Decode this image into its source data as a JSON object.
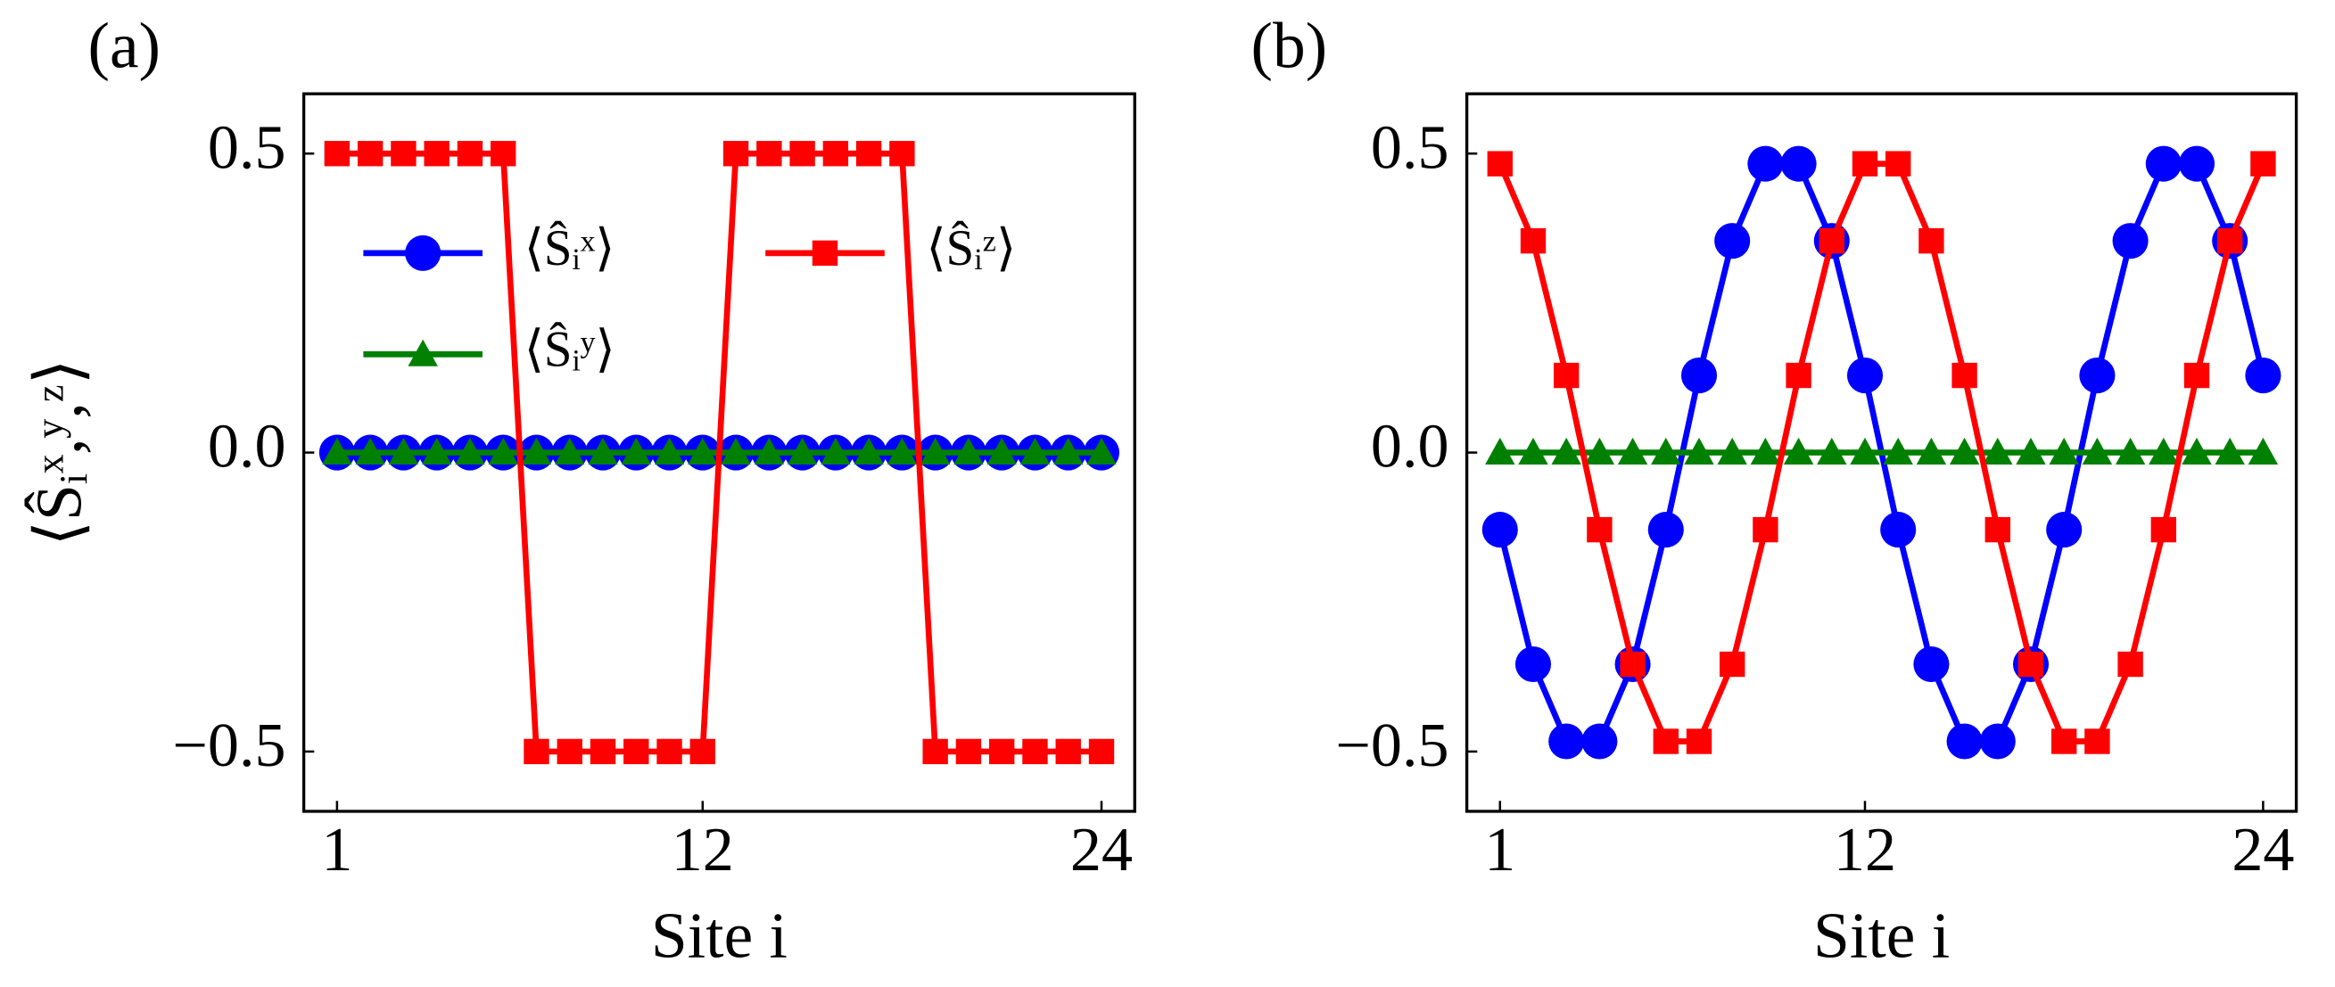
{
  "chart_data": [
    {
      "type": "line",
      "label": "(a)",
      "xlabel": "Site i",
      "ylabel": "⟨Ŝᵢˣ,ʸ,ᶻ⟩",
      "x": [
        1,
        2,
        3,
        4,
        5,
        6,
        7,
        8,
        9,
        10,
        11,
        12,
        13,
        14,
        15,
        16,
        17,
        18,
        19,
        20,
        21,
        22,
        23,
        24
      ],
      "xlim": [
        0,
        25
      ],
      "xticks": [
        1,
        12,
        24
      ],
      "ylim": [
        -0.6,
        0.6
      ],
      "yticks": [
        {
          "value": -0.5,
          "label": "−0.5"
        },
        {
          "value": 0,
          "label": "0.0"
        },
        0.5
      ],
      "legend": "upper left",
      "series": [
        {
          "name": "⟨Ŝᵢˣ⟩",
          "color": "#0000ff",
          "marker": "circle",
          "values": [
            0,
            0,
            0,
            0,
            0,
            0,
            0,
            0,
            0,
            0,
            0,
            0,
            0,
            0,
            0,
            0,
            0,
            0,
            0,
            0,
            0,
            0,
            0,
            0
          ]
        },
        {
          "name": "⟨Ŝᵢʸ⟩",
          "color": "#008000",
          "marker": "triangle",
          "values": [
            0,
            0,
            0,
            0,
            0,
            0,
            0,
            0,
            0,
            0,
            0,
            0,
            0,
            0,
            0,
            0,
            0,
            0,
            0,
            0,
            0,
            0,
            0,
            0
          ]
        },
        {
          "name": "⟨Ŝᵢᶻ⟩",
          "color": "#ff0000",
          "marker": "square",
          "values": [
            0.5,
            0.5,
            0.5,
            0.5,
            0.5,
            0.5,
            -0.5,
            -0.5,
            -0.5,
            -0.5,
            -0.5,
            -0.5,
            0.5,
            0.5,
            0.5,
            0.5,
            0.5,
            0.5,
            -0.5,
            -0.5,
            -0.5,
            -0.5,
            -0.5,
            -0.5
          ]
        }
      ]
    },
    {
      "type": "line",
      "label": "(b)",
      "xlabel": "Site i",
      "x": [
        1,
        2,
        3,
        4,
        5,
        6,
        7,
        8,
        9,
        10,
        11,
        12,
        13,
        14,
        15,
        16,
        17,
        18,
        19,
        20,
        21,
        22,
        23,
        24
      ],
      "xlim": [
        0,
        25
      ],
      "xticks": [
        1,
        12,
        24
      ],
      "ylim": [
        -0.6,
        0.6
      ],
      "yticks": [
        {
          "value": -0.5,
          "label": "−0.5"
        },
        {
          "value": 0,
          "label": "0.0"
        },
        0.5
      ],
      "series": [
        {
          "color": "#0000ff",
          "marker": "circle",
          "values": [
            -0.129,
            -0.354,
            -0.483,
            -0.483,
            -0.354,
            -0.129,
            0.129,
            0.354,
            0.483,
            0.483,
            0.354,
            0.129,
            -0.129,
            -0.354,
            -0.483,
            -0.483,
            -0.354,
            -0.129,
            0.129,
            0.354,
            0.483,
            0.483,
            0.354,
            0.129
          ]
        },
        {
          "color": "#008000",
          "marker": "triangle",
          "values": [
            0,
            0,
            0,
            0,
            0,
            0,
            0,
            0,
            0,
            0,
            0,
            0,
            0,
            0,
            0,
            0,
            0,
            0,
            0,
            0,
            0,
            0,
            0,
            0
          ]
        },
        {
          "color": "#ff0000",
          "marker": "square",
          "values": [
            0.483,
            0.354,
            0.129,
            -0.129,
            -0.354,
            -0.483,
            -0.483,
            -0.354,
            -0.129,
            0.129,
            0.354,
            0.483,
            0.483,
            0.354,
            0.129,
            -0.129,
            -0.354,
            -0.483,
            -0.483,
            -0.354,
            -0.129,
            0.129,
            0.354,
            0.483
          ]
        }
      ]
    }
  ]
}
